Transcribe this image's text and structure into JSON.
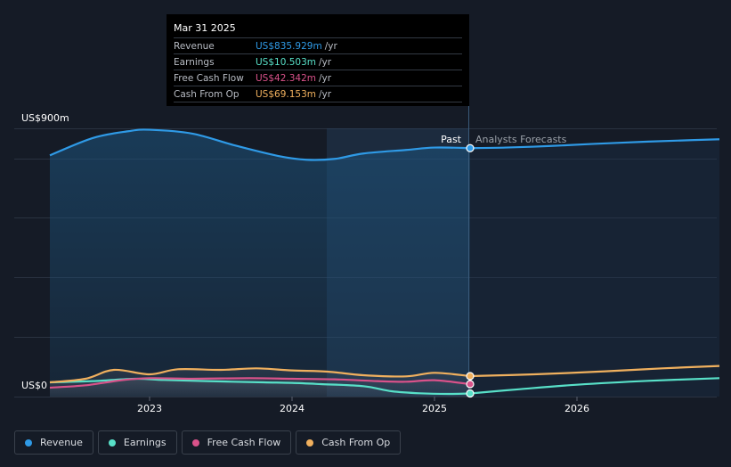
{
  "chart_data": {
    "type": "line",
    "y_max_label": "US$900m",
    "y_min_label": "US$0",
    "ylim": [
      0,
      900
    ],
    "x_ticks": [
      "2023",
      "2024",
      "2025",
      "2026"
    ],
    "past_label": "Past",
    "forecast_label": "Analysts Forecasts",
    "series": [
      {
        "name": "Revenue",
        "color": "#2f9ae6",
        "points": [
          [
            2022.3,
            812
          ],
          [
            2022.6,
            870
          ],
          [
            2022.85,
            893
          ],
          [
            2023.0,
            898
          ],
          [
            2023.3,
            885
          ],
          [
            2023.6,
            845
          ],
          [
            2023.9,
            810
          ],
          [
            2024.1,
            797
          ],
          [
            2024.3,
            800
          ],
          [
            2024.5,
            818
          ],
          [
            2024.8,
            830
          ],
          [
            2025.0,
            838
          ],
          [
            2025.25,
            836
          ]
        ],
        "forecast": [
          [
            2025.25,
            836
          ],
          [
            2025.5,
            838
          ],
          [
            2025.8,
            843
          ],
          [
            2026.1,
            850
          ],
          [
            2026.5,
            858
          ],
          [
            2026.8,
            863
          ],
          [
            2027.0,
            866
          ]
        ]
      },
      {
        "name": "Earnings",
        "color": "#58e0c8",
        "points": [
          [
            2022.3,
            48
          ],
          [
            2022.6,
            52
          ],
          [
            2022.9,
            60
          ],
          [
            2023.1,
            56
          ],
          [
            2023.4,
            52
          ],
          [
            2023.8,
            48
          ],
          [
            2024.0,
            46
          ],
          [
            2024.2,
            42
          ],
          [
            2024.5,
            35
          ],
          [
            2024.7,
            18
          ],
          [
            2024.9,
            11
          ],
          [
            2025.1,
            9
          ],
          [
            2025.25,
            10.5
          ]
        ],
        "forecast": [
          [
            2025.25,
            10.5
          ],
          [
            2025.6,
            25
          ],
          [
            2026.0,
            40
          ],
          [
            2026.5,
            53
          ],
          [
            2027.0,
            62
          ]
        ]
      },
      {
        "name": "Free Cash Flow",
        "color": "#d9528a",
        "points": [
          [
            2022.3,
            30
          ],
          [
            2022.55,
            38
          ],
          [
            2022.8,
            55
          ],
          [
            2023.0,
            62
          ],
          [
            2023.3,
            60
          ],
          [
            2023.7,
            62
          ],
          [
            2024.0,
            60
          ],
          [
            2024.3,
            58
          ],
          [
            2024.6,
            52
          ],
          [
            2024.8,
            50
          ],
          [
            2025.0,
            55
          ],
          [
            2025.25,
            42
          ]
        ],
        "forecast": []
      },
      {
        "name": "Cash From Op",
        "color": "#f0b05e",
        "points": [
          [
            2022.3,
            48
          ],
          [
            2022.55,
            60
          ],
          [
            2022.75,
            90
          ],
          [
            2023.0,
            75
          ],
          [
            2023.2,
            92
          ],
          [
            2023.5,
            90
          ],
          [
            2023.75,
            95
          ],
          [
            2024.0,
            88
          ],
          [
            2024.25,
            84
          ],
          [
            2024.5,
            72
          ],
          [
            2024.8,
            68
          ],
          [
            2025.0,
            80
          ],
          [
            2025.25,
            69
          ]
        ],
        "forecast": [
          [
            2025.25,
            69
          ],
          [
            2025.7,
            75
          ],
          [
            2026.2,
            85
          ],
          [
            2026.6,
            95
          ],
          [
            2027.0,
            103
          ]
        ]
      }
    ]
  },
  "tooltip": {
    "date": "Mar 31 2025",
    "rows": [
      {
        "label": "Revenue",
        "value": "US$835.929m",
        "unit": "/yr",
        "color": "#2f9ae6"
      },
      {
        "label": "Earnings",
        "value": "US$10.503m",
        "unit": "/yr",
        "color": "#58e0c8"
      },
      {
        "label": "Free Cash Flow",
        "value": "US$42.342m",
        "unit": "/yr",
        "color": "#d9528a"
      },
      {
        "label": "Cash From Op",
        "value": "US$69.153m",
        "unit": "/yr",
        "color": "#f0b05e"
      }
    ]
  },
  "legend": [
    {
      "label": "Revenue",
      "color": "#2f9ae6"
    },
    {
      "label": "Earnings",
      "color": "#58e0c8"
    },
    {
      "label": "Free Cash Flow",
      "color": "#d9528a"
    },
    {
      "label": "Cash From Op",
      "color": "#f0b05e"
    }
  ]
}
